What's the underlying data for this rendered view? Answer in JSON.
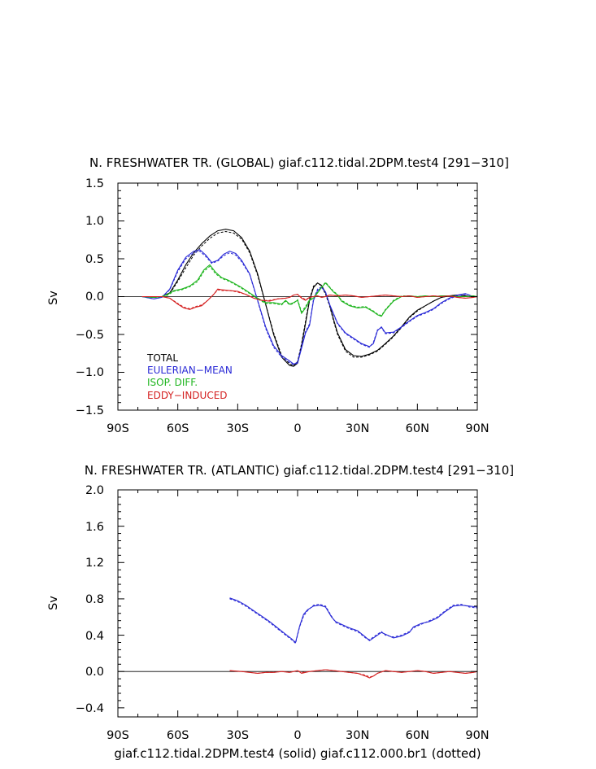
{
  "footer": "giaf.c112.tidal.2DPM.test4 (solid) giaf.c112.000.br1 (dotted)",
  "line_styles": {
    "solid": "giaf.c112.tidal.2DPM.test4",
    "dotted": "giaf.c112.000.br1"
  },
  "colors": {
    "total": "#000000",
    "eulerian": "#2a2ad6",
    "isop": "#1fb51f",
    "eddy": "#d42020",
    "axis": "#000000"
  },
  "chart_data": [
    {
      "type": "line",
      "title": "N. FRESHWATER TR. (GLOBAL) giaf.c112.tidal.2DPM.test4 [291−310]",
      "xlabel": "",
      "ylabel": "Sv",
      "xlim": [
        -90,
        90
      ],
      "ylim": [
        -1.5,
        1.5
      ],
      "xticks": [
        -90,
        -60,
        -30,
        0,
        30,
        60,
        90
      ],
      "xticklabels": [
        "90S",
        "60S",
        "30S",
        "0",
        "30N",
        "60N",
        "90N"
      ],
      "yticks": [
        -1.5,
        -1.0,
        -0.5,
        0.0,
        0.5,
        1.0,
        1.5
      ],
      "yticklabels": [
        "−1.5",
        "−1.0",
        "−0.5",
        "0.0",
        "0.5",
        "1.0",
        "1.5"
      ],
      "legend": [
        "TOTAL",
        "EULERIAN−MEAN",
        "ISOP. DIFF.",
        "EDDY−INDUCED"
      ],
      "series": [
        {
          "name": "TOTAL",
          "color": "#000000",
          "x": [
            -78,
            -72,
            -68,
            -64,
            -60,
            -56,
            -52,
            -48,
            -44,
            -40,
            -36,
            -32,
            -28,
            -24,
            -20,
            -16,
            -12,
            -8,
            -4,
            -2,
            0,
            2,
            4,
            6,
            8,
            10,
            12,
            14,
            16,
            18,
            20,
            24,
            28,
            32,
            36,
            40,
            44,
            48,
            52,
            56,
            60,
            64,
            68,
            72,
            76,
            80,
            84,
            88,
            90
          ],
          "y": [
            0,
            -0.01,
            0,
            0.05,
            0.22,
            0.42,
            0.58,
            0.7,
            0.8,
            0.87,
            0.89,
            0.87,
            0.78,
            0.6,
            0.3,
            -0.1,
            -0.5,
            -0.8,
            -0.91,
            -0.92,
            -0.88,
            -0.65,
            -0.35,
            -0.05,
            0.12,
            0.18,
            0.15,
            0.05,
            -0.1,
            -0.3,
            -0.48,
            -0.7,
            -0.78,
            -0.79,
            -0.76,
            -0.71,
            -0.62,
            -0.52,
            -0.4,
            -0.27,
            -0.18,
            -0.12,
            -0.06,
            -0.01,
            0.01,
            0.02,
            0.01,
            0,
            0
          ],
          "y2": [
            0,
            -0.01,
            0,
            0.04,
            0.2,
            0.38,
            0.55,
            0.67,
            0.77,
            0.84,
            0.86,
            0.84,
            0.76,
            0.58,
            0.28,
            -0.1,
            -0.48,
            -0.78,
            -0.89,
            -0.91,
            -0.86,
            -0.62,
            -0.32,
            -0.03,
            0.14,
            0.18,
            0.14,
            0.03,
            -0.12,
            -0.32,
            -0.5,
            -0.72,
            -0.8,
            -0.8,
            -0.77,
            -0.72,
            -0.63,
            -0.53,
            -0.41,
            -0.28,
            -0.19,
            -0.12,
            -0.06,
            -0.01,
            0.01,
            0.02,
            0.01,
            0,
            0
          ]
        },
        {
          "name": "EULERIAN−MEAN",
          "color": "#2a2ad6",
          "x": [
            -78,
            -72,
            -68,
            -64,
            -60,
            -56,
            -52,
            -49,
            -46,
            -43,
            -40,
            -37,
            -34,
            -31,
            -28,
            -24,
            -20,
            -16,
            -12,
            -8,
            -4,
            -2,
            0,
            2,
            4,
            6,
            8,
            10,
            12,
            14,
            16,
            20,
            24,
            28,
            32,
            36,
            38,
            40,
            42,
            44,
            48,
            52,
            56,
            60,
            64,
            68,
            72,
            76,
            80,
            84,
            86,
            88,
            90
          ],
          "y": [
            0,
            -0.03,
            -0.01,
            0.1,
            0.35,
            0.52,
            0.6,
            0.62,
            0.55,
            0.45,
            0.48,
            0.56,
            0.6,
            0.57,
            0.48,
            0.3,
            -0.05,
            -0.4,
            -0.65,
            -0.78,
            -0.85,
            -0.89,
            -0.88,
            -0.68,
            -0.48,
            -0.38,
            -0.05,
            0.08,
            0.12,
            0.06,
            -0.1,
            -0.35,
            -0.48,
            -0.55,
            -0.62,
            -0.66,
            -0.62,
            -0.45,
            -0.4,
            -0.48,
            -0.47,
            -0.4,
            -0.32,
            -0.25,
            -0.21,
            -0.16,
            -0.08,
            -0.02,
            0.02,
            0.04,
            0.02,
            0,
            0
          ],
          "y2": [
            0,
            -0.03,
            -0.01,
            0.09,
            0.33,
            0.5,
            0.58,
            0.6,
            0.53,
            0.44,
            0.47,
            0.54,
            0.58,
            0.55,
            0.46,
            0.29,
            -0.06,
            -0.42,
            -0.67,
            -0.8,
            -0.87,
            -0.9,
            -0.86,
            -0.65,
            -0.46,
            -0.36,
            -0.03,
            0.1,
            0.13,
            0.06,
            -0.11,
            -0.36,
            -0.49,
            -0.56,
            -0.63,
            -0.67,
            -0.6,
            -0.44,
            -0.41,
            -0.49,
            -0.48,
            -0.41,
            -0.33,
            -0.26,
            -0.22,
            -0.17,
            -0.09,
            -0.03,
            0.01,
            0.03,
            0.02,
            0,
            0
          ]
        },
        {
          "name": "ISOP. DIFF.",
          "color": "#1fb51f",
          "x": [
            -78,
            -72,
            -68,
            -65,
            -62,
            -58,
            -54,
            -50,
            -47,
            -44,
            -41,
            -38,
            -35,
            -32,
            -28,
            -24,
            -20,
            -16,
            -12,
            -8,
            -6,
            -4,
            -2,
            0,
            2,
            4,
            6,
            8,
            10,
            12,
            14,
            16,
            18,
            20,
            22,
            26,
            30,
            34,
            38,
            40,
            42,
            44,
            48,
            52,
            56,
            60,
            64,
            68,
            72,
            76,
            80,
            84,
            88,
            90
          ],
          "y": [
            0,
            -0.01,
            0,
            0.03,
            0.08,
            0.1,
            0.14,
            0.22,
            0.35,
            0.42,
            0.32,
            0.25,
            0.22,
            0.18,
            0.12,
            0.05,
            -0.02,
            -0.08,
            -0.08,
            -0.1,
            -0.05,
            -0.1,
            -0.08,
            -0.05,
            -0.22,
            -0.15,
            -0.05,
            -0.02,
            0.05,
            0.12,
            0.18,
            0.12,
            0.06,
            0.02,
            -0.06,
            -0.12,
            -0.15,
            -0.14,
            -0.2,
            -0.24,
            -0.26,
            -0.18,
            -0.06,
            0.0,
            0.01,
            0.0,
            0.01,
            0.0,
            0.01,
            0.01,
            0.0,
            0.0,
            0.01,
            0
          ],
          "y2": [
            0,
            -0.01,
            0,
            0.02,
            0.07,
            0.09,
            0.13,
            0.2,
            0.33,
            0.4,
            0.3,
            0.24,
            0.21,
            0.17,
            0.11,
            0.04,
            -0.03,
            -0.09,
            -0.09,
            -0.11,
            -0.06,
            -0.11,
            -0.09,
            -0.04,
            -0.2,
            -0.13,
            -0.04,
            -0.01,
            0.06,
            0.13,
            0.19,
            0.13,
            0.07,
            0.03,
            -0.05,
            -0.11,
            -0.14,
            -0.13,
            -0.19,
            -0.23,
            -0.25,
            -0.17,
            -0.05,
            0.01,
            0.01,
            0.0,
            0.01,
            0.0,
            0.01,
            0.01,
            0.0,
            0.0,
            0.01,
            0
          ]
        },
        {
          "name": "EDDY−INDUCED",
          "color": "#d42020",
          "x": [
            -78,
            -72,
            -68,
            -64,
            -60,
            -57,
            -54,
            -51,
            -48,
            -45,
            -42,
            -40,
            -38,
            -34,
            -30,
            -26,
            -22,
            -18,
            -14,
            -10,
            -6,
            -4,
            -2,
            0,
            2,
            4,
            6,
            8,
            10,
            12,
            14,
            16,
            20,
            24,
            28,
            32,
            36,
            40,
            44,
            48,
            52,
            56,
            60,
            64,
            68,
            72,
            76,
            80,
            84,
            88,
            90
          ],
          "y": [
            0,
            0,
            0,
            -0.02,
            -0.1,
            -0.15,
            -0.17,
            -0.14,
            -0.12,
            -0.05,
            0.03,
            0.1,
            0.09,
            0.08,
            0.07,
            0.03,
            -0.02,
            -0.05,
            -0.06,
            -0.03,
            -0.02,
            -0.01,
            0.02,
            0.03,
            -0.02,
            -0.05,
            -0.01,
            0.0,
            0.01,
            -0.01,
            0.0,
            0.02,
            0.01,
            0.02,
            0.01,
            -0.01,
            0.0,
            0.01,
            0.02,
            0.01,
            0.0,
            0.01,
            -0.01,
            0.0,
            0.01,
            0.0,
            0.01,
            -0.01,
            -0.02,
            -0.01,
            0
          ],
          "y2": [
            0,
            0,
            0,
            -0.02,
            -0.09,
            -0.14,
            -0.16,
            -0.13,
            -0.11,
            -0.05,
            0.03,
            0.09,
            0.08,
            0.08,
            0.06,
            0.03,
            -0.02,
            -0.05,
            -0.05,
            -0.03,
            -0.02,
            -0.01,
            0.02,
            0.03,
            -0.01,
            -0.04,
            -0.01,
            0.0,
            0.01,
            -0.01,
            0.0,
            0.02,
            0.01,
            0.02,
            0.01,
            -0.01,
            0.0,
            0.01,
            0.02,
            0.01,
            0.0,
            0.01,
            -0.01,
            0.0,
            0.01,
            0.0,
            0.01,
            -0.01,
            -0.02,
            -0.01,
            0
          ]
        }
      ]
    },
    {
      "type": "line",
      "title": "N. FRESHWATER TR. (ATLANTIC) giaf.c112.tidal.2DPM.test4 [291−310]",
      "xlabel": "giaf.c112.tidal.2DPM.test4 (solid) giaf.c112.000.br1 (dotted)",
      "ylabel": "Sv",
      "xlim": [
        -90,
        90
      ],
      "ylim": [
        -0.5,
        2.0
      ],
      "xticks": [
        -90,
        -60,
        -30,
        0,
        30,
        60,
        90
      ],
      "xticklabels": [
        "90S",
        "60S",
        "30S",
        "0",
        "30N",
        "60N",
        "90N"
      ],
      "yticks": [
        -0.4,
        0.0,
        0.4,
        0.8,
        1.2,
        1.6,
        2.0
      ],
      "yticklabels": [
        "−0.4",
        "0.0",
        "0.4",
        "0.8",
        "1.2",
        "1.6",
        "2.0"
      ],
      "series": [
        {
          "name": "EULERIAN−MEAN",
          "color": "#2a2ad6",
          "x": [
            -34,
            -30,
            -26,
            -22,
            -18,
            -14,
            -10,
            -6,
            -3,
            -1,
            1,
            3,
            5,
            8,
            11,
            14,
            17,
            19,
            22,
            26,
            30,
            34,
            36,
            38,
            40,
            42,
            44,
            48,
            52,
            56,
            58,
            62,
            66,
            70,
            74,
            78,
            82,
            86,
            90
          ],
          "y": [
            0.81,
            0.78,
            0.73,
            0.67,
            0.61,
            0.55,
            0.48,
            0.41,
            0.36,
            0.32,
            0.5,
            0.63,
            0.68,
            0.72,
            0.73,
            0.71,
            0.6,
            0.55,
            0.52,
            0.48,
            0.45,
            0.38,
            0.34,
            0.37,
            0.4,
            0.43,
            0.41,
            0.37,
            0.39,
            0.43,
            0.49,
            0.53,
            0.55,
            0.59,
            0.66,
            0.72,
            0.73,
            0.72,
            0.71
          ],
          "y2": [
            0.8,
            0.77,
            0.72,
            0.66,
            0.6,
            0.54,
            0.47,
            0.4,
            0.35,
            0.31,
            0.49,
            0.61,
            0.67,
            0.73,
            0.74,
            0.72,
            0.61,
            0.54,
            0.51,
            0.47,
            0.44,
            0.37,
            0.35,
            0.38,
            0.41,
            0.44,
            0.4,
            0.38,
            0.4,
            0.44,
            0.48,
            0.52,
            0.56,
            0.6,
            0.67,
            0.73,
            0.74,
            0.71,
            0.7
          ]
        },
        {
          "name": "EDDY−INDUCED",
          "color": "#d42020",
          "x": [
            -34,
            -28,
            -24,
            -20,
            -16,
            -12,
            -8,
            -4,
            0,
            2,
            6,
            10,
            14,
            18,
            22,
            26,
            30,
            34,
            36,
            38,
            40,
            44,
            48,
            52,
            56,
            60,
            64,
            68,
            72,
            76,
            80,
            84,
            88,
            90
          ],
          "y": [
            0.01,
            0.0,
            -0.01,
            -0.02,
            -0.01,
            -0.01,
            0.0,
            -0.01,
            0.01,
            -0.02,
            0.0,
            0.01,
            0.02,
            0.01,
            0.0,
            -0.01,
            -0.02,
            -0.05,
            -0.07,
            -0.05,
            -0.02,
            0.01,
            0.0,
            -0.01,
            0.0,
            0.01,
            0.0,
            -0.02,
            -0.01,
            0.0,
            -0.01,
            -0.02,
            -0.01,
            0.0
          ],
          "y2": [
            0.01,
            0.0,
            -0.01,
            -0.02,
            -0.01,
            -0.01,
            0.0,
            -0.01,
            0.01,
            -0.01,
            0.0,
            0.01,
            0.02,
            0.01,
            0.0,
            -0.01,
            -0.02,
            -0.04,
            -0.06,
            -0.05,
            -0.02,
            0.01,
            0.0,
            -0.01,
            0.0,
            0.01,
            0.0,
            -0.02,
            -0.01,
            0.0,
            -0.01,
            -0.02,
            -0.01,
            0.0
          ]
        }
      ]
    }
  ]
}
